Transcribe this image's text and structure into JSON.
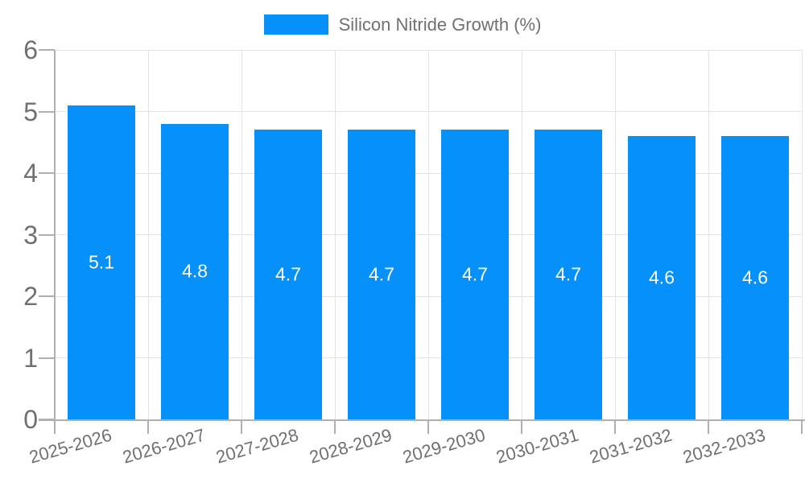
{
  "chart_data": {
    "type": "bar",
    "legend_position": "top",
    "categories": [
      "2025-2026",
      "2026-2027",
      "2027-2028",
      "2028-2029",
      "2029-2030",
      "2030-2031",
      "2031-2032",
      "2032-2033"
    ],
    "series": [
      {
        "name": "Silicon Nitride Growth (%)",
        "values": [
          5.1,
          4.8,
          4.7,
          4.7,
          4.7,
          4.7,
          4.6,
          4.6
        ]
      }
    ],
    "value_labels": [
      "5.1",
      "4.8",
      "4.7",
      "4.7",
      "4.7",
      "4.7",
      "4.6",
      "4.6"
    ],
    "title": "",
    "xlabel": "",
    "ylabel": "",
    "ylim": [
      0,
      6
    ],
    "yticks": [
      0,
      1,
      2,
      3,
      4,
      5,
      6
    ],
    "ytick_labels": [
      "0",
      "1",
      "2",
      "3",
      "4",
      "5",
      "6"
    ],
    "grid": true,
    "colors": {
      "bar": "#0690fa",
      "grid": "#e3e3e3",
      "axis": "#b0b0b0",
      "text": "#707070",
      "value_label": "#ffffff",
      "background": "#ffffff"
    }
  }
}
